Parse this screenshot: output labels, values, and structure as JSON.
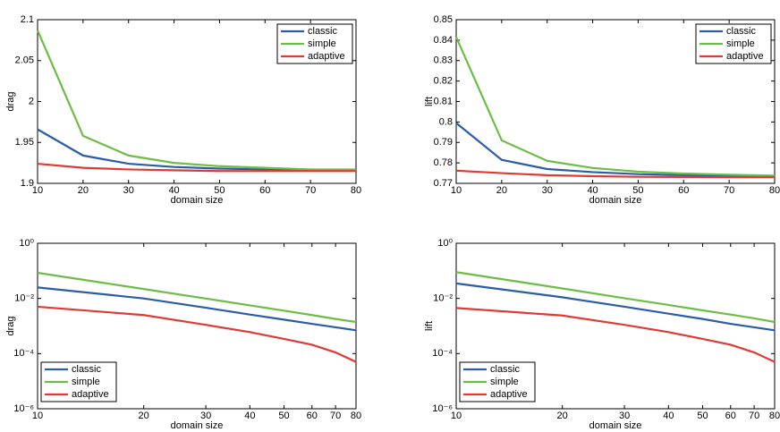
{
  "chart_data": [
    {
      "type": "line",
      "xlabel": "domain size",
      "ylabel": "drag",
      "legend": "upper right",
      "x": [
        10,
        20,
        30,
        40,
        50,
        60,
        70,
        80
      ],
      "xlim": [
        10,
        80
      ],
      "xticks": [
        10,
        20,
        30,
        40,
        50,
        60,
        70,
        80
      ],
      "ylim": [
        1.9,
        2.1
      ],
      "yticks": [
        1.9,
        1.95,
        2,
        2.05,
        2.1
      ],
      "series": [
        {
          "name": "classic",
          "color": "#2a5ca8",
          "values": [
            1.966,
            1.934,
            1.924,
            1.92,
            1.918,
            1.917,
            1.916,
            1.916
          ]
        },
        {
          "name": "simple",
          "color": "#6cbd45",
          "values": [
            2.087,
            1.958,
            1.934,
            1.925,
            1.921,
            1.919,
            1.917,
            1.917
          ]
        },
        {
          "name": "adaptive",
          "color": "#e03a35",
          "values": [
            1.924,
            1.919,
            1.917,
            1.916,
            1.915,
            1.915,
            1.915,
            1.915
          ]
        }
      ]
    },
    {
      "type": "line",
      "xlabel": "domain size",
      "ylabel": "lift",
      "legend": "upper right",
      "x": [
        10,
        20,
        30,
        40,
        50,
        60,
        70,
        80
      ],
      "xlim": [
        10,
        80
      ],
      "xticks": [
        10,
        20,
        30,
        40,
        50,
        60,
        70,
        80
      ],
      "ylim": [
        0.77,
        0.85
      ],
      "yticks": [
        0.77,
        0.78,
        0.79,
        0.8,
        0.81,
        0.82,
        0.83,
        0.84,
        0.85
      ],
      "series": [
        {
          "name": "classic",
          "color": "#2a5ca8",
          "values": [
            0.7995,
            0.7815,
            0.777,
            0.7755,
            0.7745,
            0.774,
            0.7735,
            0.7733
          ]
        },
        {
          "name": "simple",
          "color": "#6cbd45",
          "values": [
            0.8415,
            0.791,
            0.781,
            0.7775,
            0.7757,
            0.7748,
            0.7742,
            0.7738
          ]
        },
        {
          "name": "adaptive",
          "color": "#e03a35",
          "values": [
            0.7762,
            0.775,
            0.774,
            0.7735,
            0.7732,
            0.7731,
            0.773,
            0.773
          ]
        }
      ]
    },
    {
      "type": "line",
      "xlabel": "domain size",
      "ylabel": "drag",
      "legend": "lower left",
      "xscale": "log",
      "yscale": "log",
      "x": [
        10,
        20,
        30,
        40,
        50,
        60,
        70,
        80
      ],
      "xlim": [
        10,
        80
      ],
      "xticks": [
        10,
        20,
        30,
        40,
        50,
        60,
        70,
        80
      ],
      "ylim": [
        1e-06,
        1
      ],
      "yticks": [
        {
          "value": 1e-06,
          "label": "10⁻⁶"
        },
        {
          "value": 0.0001,
          "label": "10⁻⁴"
        },
        {
          "value": 0.01,
          "label": "10⁻²"
        },
        {
          "value": 1,
          "label": "10⁰"
        }
      ],
      "series": [
        {
          "name": "classic",
          "color": "#2a5ca8",
          "values": [
            0.025,
            0.01,
            0.0046,
            0.0026,
            0.0017,
            0.0012,
            0.0009,
            0.0007
          ]
        },
        {
          "name": "simple",
          "color": "#6cbd45",
          "values": [
            0.085,
            0.022,
            0.0099,
            0.0056,
            0.0036,
            0.0025,
            0.0018,
            0.0014
          ]
        },
        {
          "name": "adaptive",
          "color": "#e03a35",
          "values": [
            0.005,
            0.0025,
            0.0011,
            0.0006,
            0.00034,
            0.00021,
            0.00011,
            5e-05
          ]
        }
      ]
    },
    {
      "type": "line",
      "xlabel": "domain size",
      "ylabel": "lift",
      "legend": "lower left",
      "xscale": "log",
      "yscale": "log",
      "x": [
        10,
        20,
        30,
        40,
        50,
        60,
        70,
        80
      ],
      "xlim": [
        10,
        80
      ],
      "xticks": [
        10,
        20,
        30,
        40,
        50,
        60,
        70,
        80
      ],
      "ylim": [
        1e-06,
        1
      ],
      "yticks": [
        {
          "value": 1e-06,
          "label": "10⁻⁶"
        },
        {
          "value": 0.0001,
          "label": "10⁻⁴"
        },
        {
          "value": 0.01,
          "label": "10⁻²"
        },
        {
          "value": 1,
          "label": "10⁰"
        }
      ],
      "series": [
        {
          "name": "classic",
          "color": "#2a5ca8",
          "values": [
            0.035,
            0.011,
            0.005,
            0.0028,
            0.0018,
            0.0012,
            0.0009,
            0.0007
          ]
        },
        {
          "name": "simple",
          "color": "#6cbd45",
          "values": [
            0.09,
            0.023,
            0.0102,
            0.0058,
            0.0037,
            0.0026,
            0.0019,
            0.0014
          ]
        },
        {
          "name": "adaptive",
          "color": "#e03a35",
          "values": [
            0.0045,
            0.0024,
            0.0011,
            0.0006,
            0.00034,
            0.00021,
            0.00011,
            5e-05
          ]
        }
      ]
    }
  ]
}
